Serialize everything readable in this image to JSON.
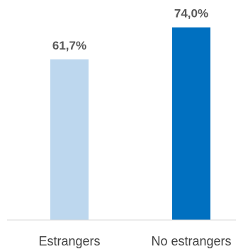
{
  "chart_data": {
    "type": "bar",
    "title": "",
    "xlabel": "",
    "ylabel": "",
    "categories": [
      "Estrangers",
      "No estrangers"
    ],
    "values": [
      61.7,
      74.0
    ],
    "value_labels": [
      "61,7%",
      "74,0%"
    ],
    "unit": "%",
    "ylim": [
      0,
      100
    ],
    "grid": false,
    "legend": "none",
    "colors": [
      "#bdd7ee",
      "#0070c0"
    ],
    "axis_color": "#d9d9d9"
  }
}
